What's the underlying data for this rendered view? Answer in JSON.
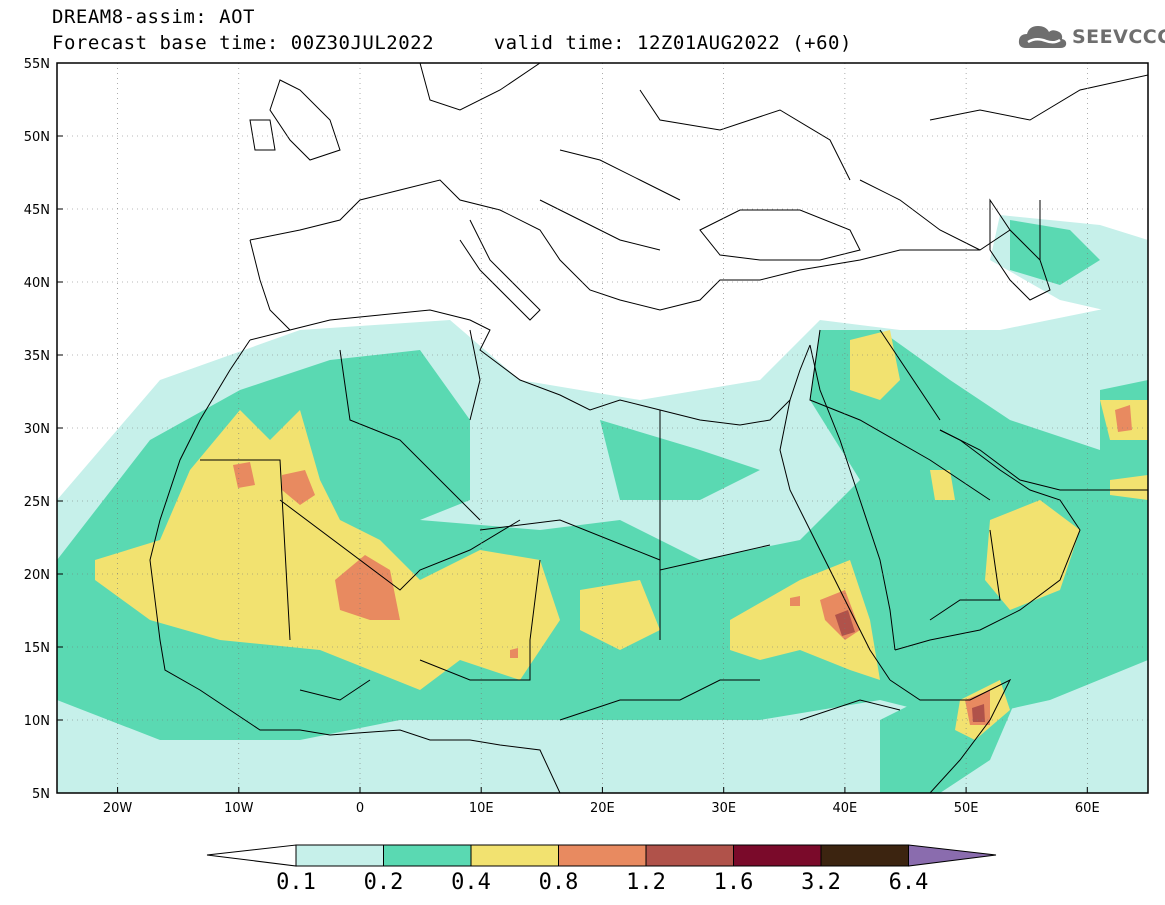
{
  "header": {
    "title_line1": "DREAM8-assim: AOT",
    "title_line2": "Forecast base time: 00Z30JUL2022     valid time: 12Z01AUG2022 (+60)"
  },
  "logo": {
    "text": "SEEVCCC",
    "icon": "cloud-icon"
  },
  "map": {
    "variable": "AOT",
    "lon_range": [
      -25,
      65
    ],
    "lat_range": [
      5,
      55
    ],
    "lon_ticks": [
      {
        "value": -20,
        "label": "20W"
      },
      {
        "value": -10,
        "label": "10W"
      },
      {
        "value": 0,
        "label": "0"
      },
      {
        "value": 10,
        "label": "10E"
      },
      {
        "value": 20,
        "label": "20E"
      },
      {
        "value": 30,
        "label": "30E"
      },
      {
        "value": 40,
        "label": "40E"
      },
      {
        "value": 50,
        "label": "50E"
      },
      {
        "value": 60,
        "label": "60E"
      }
    ],
    "lat_ticks": [
      {
        "value": 55,
        "label": "55N"
      },
      {
        "value": 50,
        "label": "50N"
      },
      {
        "value": 45,
        "label": "45N"
      },
      {
        "value": 40,
        "label": "40N"
      },
      {
        "value": 35,
        "label": "35N"
      },
      {
        "value": 30,
        "label": "30N"
      },
      {
        "value": 25,
        "label": "25N"
      },
      {
        "value": 20,
        "label": "20N"
      },
      {
        "value": 15,
        "label": "15N"
      },
      {
        "value": 10,
        "label": "10N"
      },
      {
        "value": 5,
        "label": "5N"
      }
    ],
    "gridlines": "dotted"
  },
  "colorbar": {
    "thresholds": [
      "0.1",
      "0.2",
      "0.4",
      "0.8",
      "1.2",
      "1.6",
      "3.2",
      "6.4"
    ],
    "colors": [
      "#ffffff",
      "#c6f0ea",
      "#5ad9b2",
      "#f2e270",
      "#e88a60",
      "#b0524a",
      "#7a0a2a",
      "#3c2410",
      "#8a6cae"
    ]
  }
}
